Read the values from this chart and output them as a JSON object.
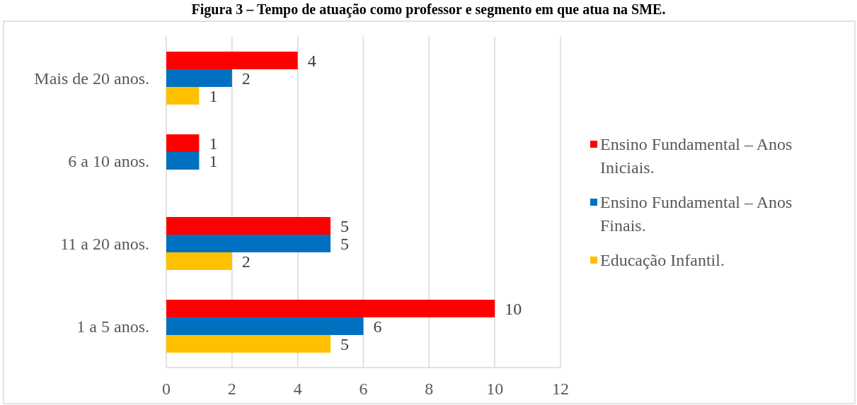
{
  "chart_data": {
    "type": "bar",
    "orientation": "horizontal",
    "title": "Figura 3 – Tempo de atuação como professor e segmento em que atua na SME.",
    "categories": [
      "Mais de 20 anos.",
      "6 a 10 anos.",
      "11 a 20 anos.",
      "1 a 5 anos."
    ],
    "series": [
      {
        "name": "Ensino Fundamental – Anos Iniciais.",
        "color": "#ff0000",
        "values": [
          4,
          1,
          5,
          10
        ]
      },
      {
        "name": "Ensino Fundamental – Anos Finais.",
        "color": "#0070c0",
        "values": [
          2,
          1,
          5,
          6
        ]
      },
      {
        "name": "Educação Infantil.",
        "color": "#ffc000",
        "values": [
          1,
          null,
          2,
          5
        ]
      }
    ],
    "xlim": [
      0,
      12
    ],
    "xticks": [
      0,
      2,
      4,
      6,
      8,
      10,
      12
    ],
    "grid": "x",
    "legend": "right",
    "data_labels": true
  }
}
